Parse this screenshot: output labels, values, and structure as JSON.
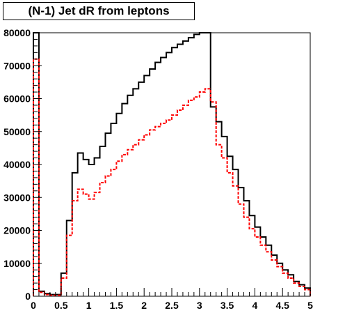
{
  "chart_data": {
    "type": "histogram",
    "title": "(N-1) Jet dR from leptons",
    "xlabel": "",
    "ylabel": "",
    "xlim": [
      0,
      5
    ],
    "ylim": [
      0,
      80000
    ],
    "bin_width": 0.1,
    "x_ticks": [
      "0",
      "0.5",
      "1",
      "1.5",
      "2",
      "2.5",
      "3",
      "3.5",
      "4",
      "4.5",
      "5"
    ],
    "x_tick_values": [
      0,
      0.5,
      1,
      1.5,
      2,
      2.5,
      3,
      3.5,
      4,
      4.5,
      5
    ],
    "y_ticks": [
      "0",
      "10000",
      "20000",
      "30000",
      "40000",
      "50000",
      "60000",
      "70000",
      "80000"
    ],
    "y_tick_values": [
      0,
      10000,
      20000,
      30000,
      40000,
      50000,
      60000,
      70000,
      80000
    ],
    "bin_edges": [
      0,
      0.1,
      0.2,
      0.3,
      0.4,
      0.5,
      0.6,
      0.7,
      0.8,
      0.9,
      1.0,
      1.1,
      1.2,
      1.3,
      1.4,
      1.5,
      1.6,
      1.7,
      1.8,
      1.9,
      2.0,
      2.1,
      2.2,
      2.3,
      2.4,
      2.5,
      2.6,
      2.7,
      2.8,
      2.9,
      3.0,
      3.1,
      3.2,
      3.3,
      3.4,
      3.5,
      3.6,
      3.7,
      3.8,
      3.9,
      4.0,
      4.1,
      4.2,
      4.3,
      4.4,
      4.5,
      4.6,
      4.7,
      4.8,
      4.9,
      5.0
    ],
    "series": [
      {
        "color": "#000000",
        "dashed": false,
        "values": [
          80500,
          1500,
          800,
          500,
          500,
          7000,
          23000,
          37500,
          43500,
          41500,
          40000,
          42000,
          45500,
          49500,
          52500,
          55500,
          58500,
          61000,
          63000,
          65000,
          67000,
          69000,
          71000,
          72500,
          74000,
          75500,
          76500,
          77500,
          78500,
          79500,
          80500,
          80300,
          57500,
          53000,
          48500,
          42500,
          38500,
          33000,
          29000,
          24500,
          21000,
          18000,
          15500,
          12500,
          10000,
          8000,
          6500,
          4500,
          3500,
          2500
        ]
      },
      {
        "color": "#ff0000",
        "dashed": true,
        "values": [
          72000,
          1200,
          500,
          300,
          300,
          5500,
          18500,
          29000,
          32500,
          31000,
          29500,
          31500,
          34500,
          36500,
          38500,
          41000,
          43000,
          44500,
          46000,
          47500,
          49000,
          50500,
          51500,
          52500,
          53500,
          55000,
          56500,
          58000,
          59500,
          60500,
          62000,
          63000,
          59000,
          46000,
          42000,
          37500,
          33500,
          28000,
          24000,
          20500,
          18000,
          15500,
          13500,
          11000,
          9000,
          7000,
          5500,
          4000,
          3000,
          2000
        ]
      }
    ]
  }
}
